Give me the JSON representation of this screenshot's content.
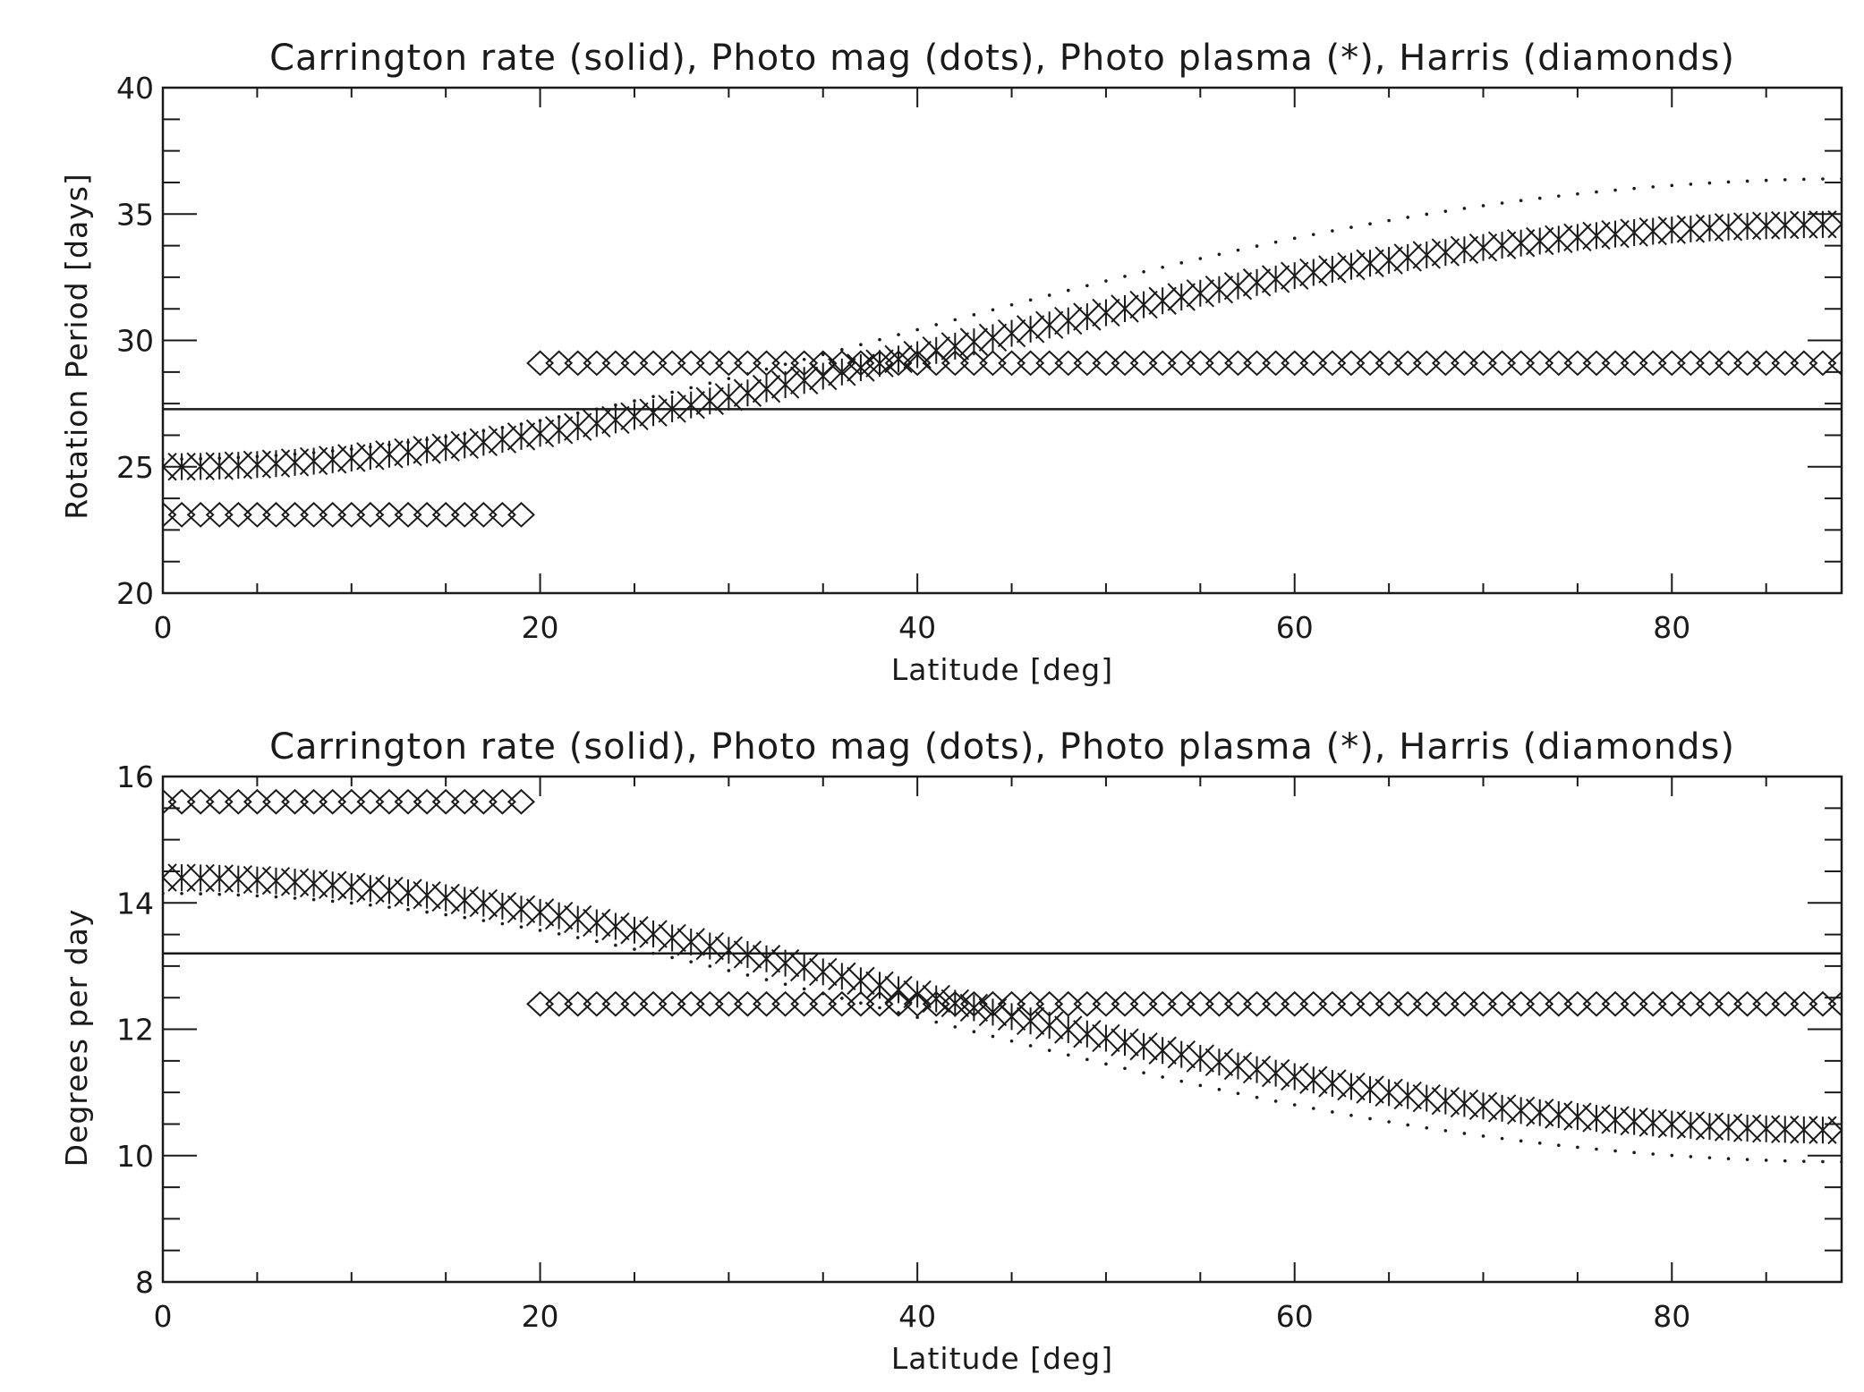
{
  "chart_data": [
    {
      "type": "scatter",
      "title": "Carrington rate (solid), Photo mag (dots), Photo plasma (*), Harris (diamonds)",
      "xlabel": "Latitude [deg]",
      "ylabel": "Rotation Period [days]",
      "xlim": [
        0,
        89
      ],
      "ylim": [
        20,
        40
      ],
      "x_ticks": [
        "0",
        "20",
        "40",
        "60",
        "80"
      ],
      "y_ticks": [
        "20",
        "25",
        "30",
        "35",
        "40"
      ],
      "grid": false,
      "series": [
        {
          "name": "Carrington rate",
          "style": "solid",
          "constant": 27.28
        },
        {
          "name": "Photo mag",
          "style": "dots",
          "equator": 25.3,
          "pole": 36.4
        },
        {
          "name": "Photo plasma",
          "style": "asterisks",
          "equator": 25.0,
          "pole": 34.6
        },
        {
          "name": "Harris",
          "style": "diamonds",
          "segments": [
            {
              "from": 0,
              "to": 19,
              "value": 23.1
            },
            {
              "from": 20,
              "to": 89,
              "value": 29.1
            }
          ]
        }
      ]
    },
    {
      "type": "scatter",
      "title": "Carrington rate (solid), Photo mag (dots), Photo plasma (*), Harris (diamonds)",
      "xlabel": "Latitude [deg]",
      "ylabel": "Degrees per day",
      "xlim": [
        0,
        89
      ],
      "ylim": [
        8,
        16
      ],
      "x_ticks": [
        "0",
        "20",
        "40",
        "60",
        "80"
      ],
      "y_ticks": [
        "8",
        "10",
        "12",
        "14",
        "16"
      ],
      "grid": false,
      "series": [
        {
          "name": "Carrington rate",
          "style": "solid",
          "constant": 13.2
        },
        {
          "name": "Photo mag",
          "style": "dots",
          "equator": 14.15,
          "pole": 9.9
        },
        {
          "name": "Photo plasma",
          "style": "asterisks",
          "equator": 14.4,
          "pole": 10.4
        },
        {
          "name": "Harris",
          "style": "diamonds",
          "segments": [
            {
              "from": 0,
              "to": 19,
              "value": 15.6
            },
            {
              "from": 20,
              "to": 89,
              "value": 12.4
            }
          ]
        }
      ]
    }
  ]
}
